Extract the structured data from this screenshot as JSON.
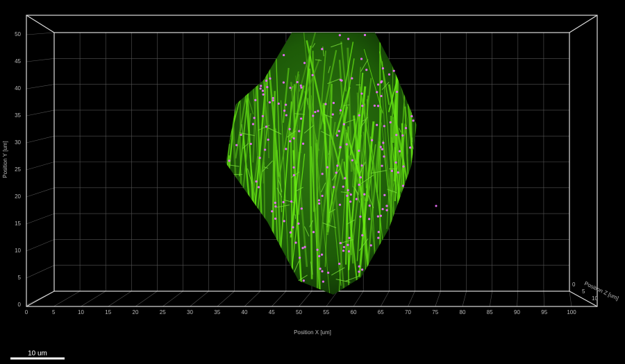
{
  "axes": {
    "x": {
      "label": "Position X [um]",
      "ticks": [
        0,
        5,
        10,
        15,
        20,
        25,
        30,
        35,
        40,
        45,
        50,
        55,
        60,
        65,
        70,
        75,
        80,
        85,
        90,
        95,
        100
      ]
    },
    "y": {
      "label": "Position Y [um]",
      "ticks": [
        0,
        5,
        10,
        15,
        20,
        25,
        30,
        35,
        40,
        45,
        50
      ]
    },
    "z": {
      "label": "Position Z [um]",
      "ticks": [
        0,
        5,
        10
      ]
    }
  },
  "scale_bar": {
    "label": "10 um"
  }
}
